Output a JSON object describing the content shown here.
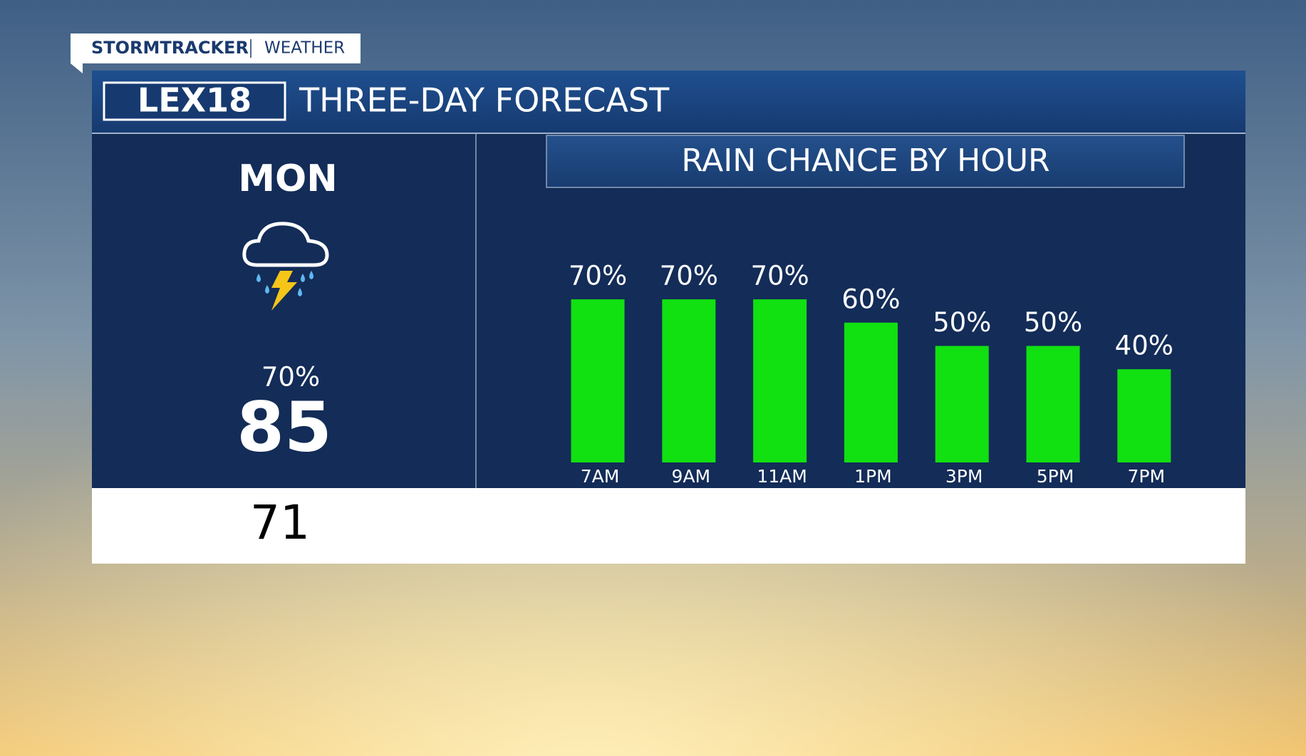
{
  "brand": {
    "name": "STORMTRACKER",
    "section": "WEATHER",
    "logo": "LEX18"
  },
  "header": {
    "title": "THREE-DAY FORECAST"
  },
  "day": {
    "name": "MON",
    "precip": "70%",
    "high": "85",
    "low": "71"
  },
  "chart_data": {
    "type": "bar",
    "title": "RAIN CHANCE BY HOUR",
    "categories": [
      "7AM",
      "9AM",
      "11AM",
      "1PM",
      "3PM",
      "5PM",
      "7PM"
    ],
    "values": [
      70,
      70,
      70,
      60,
      50,
      50,
      40
    ],
    "value_labels": [
      "70%",
      "70%",
      "70%",
      "60%",
      "50%",
      "50%",
      "40%"
    ],
    "color": "#11e011"
  }
}
